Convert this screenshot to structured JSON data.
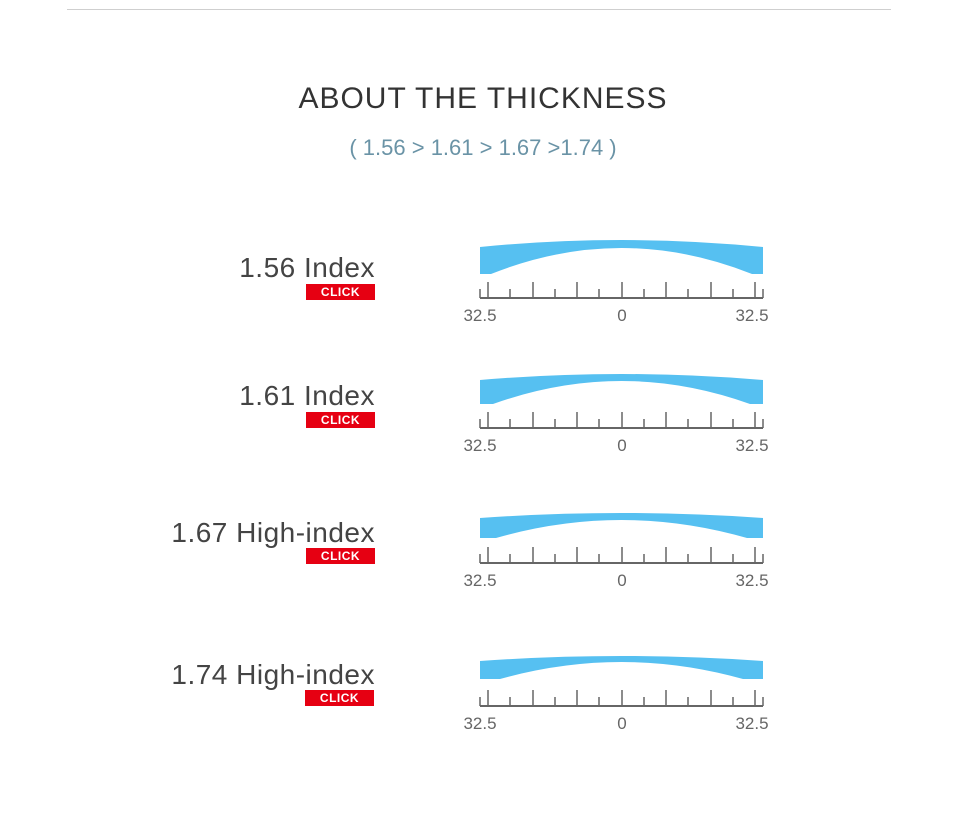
{
  "header": {
    "title": "ABOUT THE THICKNESS",
    "subtitle": "( 1.56 > 1.61 > 1.67 >1.74 )"
  },
  "colors": {
    "lens": "#56c0f1",
    "click": "#e60012",
    "ruler": "#666666"
  },
  "rows": [
    {
      "label": "1.56 Index",
      "button": "CLICK",
      "scale_left": "32.5",
      "scale_center": "0",
      "scale_right": "32.5"
    },
    {
      "label": "1.61 Index",
      "button": "CLICK",
      "scale_left": "32.5",
      "scale_center": "0",
      "scale_right": "32.5"
    },
    {
      "label": "1.67 High-index",
      "button": "CLICK",
      "scale_left": "32.5",
      "scale_center": "0",
      "scale_right": "32.5"
    },
    {
      "label": "1.74 High-index",
      "button": "CLICK",
      "scale_left": "32.5",
      "scale_center": "0",
      "scale_right": "32.5"
    }
  ]
}
